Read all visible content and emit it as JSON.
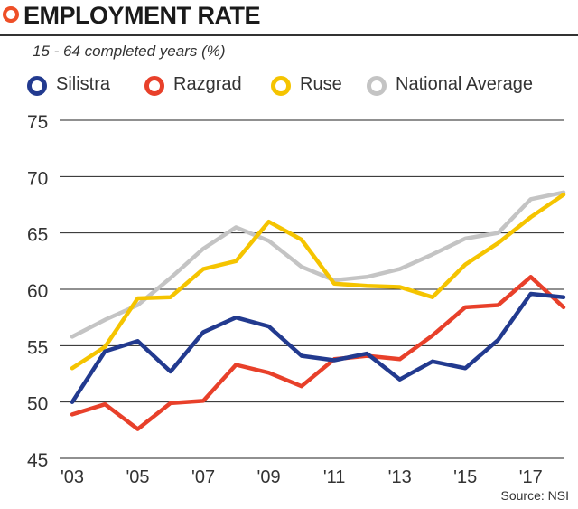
{
  "header": {
    "title": "EMPLOYMENT RATE",
    "subtitle": "15 - 64 completed years (%)"
  },
  "colors": {
    "accent": "#ee4f27",
    "silistra": "#223a8f",
    "razgrad": "#e8402a",
    "ruse": "#f5c400",
    "national_average": "#c4c4c4"
  },
  "legend": [
    {
      "label": "Silistra",
      "color": "#223a8f"
    },
    {
      "label": "Razgrad",
      "color": "#e8402a"
    },
    {
      "label": "Ruse",
      "color": "#f5c400"
    },
    {
      "label": "National Average",
      "color": "#c4c4c4"
    }
  ],
  "source": "Source: NSI",
  "chart_data": {
    "type": "line",
    "title": "EMPLOYMENT RATE",
    "subtitle": "15 - 64 completed years (%)",
    "xlabel": "",
    "ylabel": "",
    "x": [
      2003,
      2004,
      2005,
      2006,
      2007,
      2008,
      2009,
      2010,
      2011,
      2012,
      2013,
      2014,
      2015,
      2016,
      2017,
      2018
    ],
    "x_ticks": [
      2003,
      2005,
      2007,
      2009,
      2011,
      2013,
      2015,
      2017
    ],
    "x_tick_labels": [
      "'03",
      "'05",
      "'07",
      "'09",
      "'11",
      "'13",
      "'15",
      "'17"
    ],
    "ylim": [
      45,
      75
    ],
    "y_ticks": [
      45,
      50,
      55,
      60,
      65,
      70,
      75
    ],
    "y_tick_labels": [
      "45",
      "50",
      "55",
      "60",
      "65",
      "70",
      "75"
    ],
    "grid": "horizontal",
    "legend_position": "top",
    "series": [
      {
        "name": "National Average",
        "color": "#c4c4c4",
        "values": [
          55.8,
          57.3,
          58.6,
          61.0,
          63.6,
          65.5,
          64.3,
          62.0,
          60.8,
          61.1,
          61.8,
          63.1,
          64.5,
          65.0,
          68.0,
          68.6
        ]
      },
      {
        "name": "Ruse",
        "color": "#f5c400",
        "values": [
          53.0,
          54.9,
          59.2,
          59.3,
          61.8,
          62.5,
          66.0,
          64.4,
          60.5,
          60.3,
          60.2,
          59.3,
          62.2,
          64.1,
          66.4,
          68.4
        ]
      },
      {
        "name": "Razgrad",
        "color": "#e8402a",
        "values": [
          48.9,
          49.8,
          47.6,
          49.9,
          50.1,
          53.3,
          52.6,
          51.4,
          53.8,
          54.1,
          53.8,
          55.9,
          58.4,
          58.6,
          61.1,
          58.4
        ]
      },
      {
        "name": "Silistra",
        "color": "#223a8f",
        "values": [
          50.0,
          54.5,
          55.4,
          52.7,
          56.2,
          57.5,
          56.7,
          54.1,
          53.7,
          54.3,
          52.0,
          53.6,
          53.0,
          55.5,
          59.6,
          59.3
        ]
      }
    ]
  }
}
